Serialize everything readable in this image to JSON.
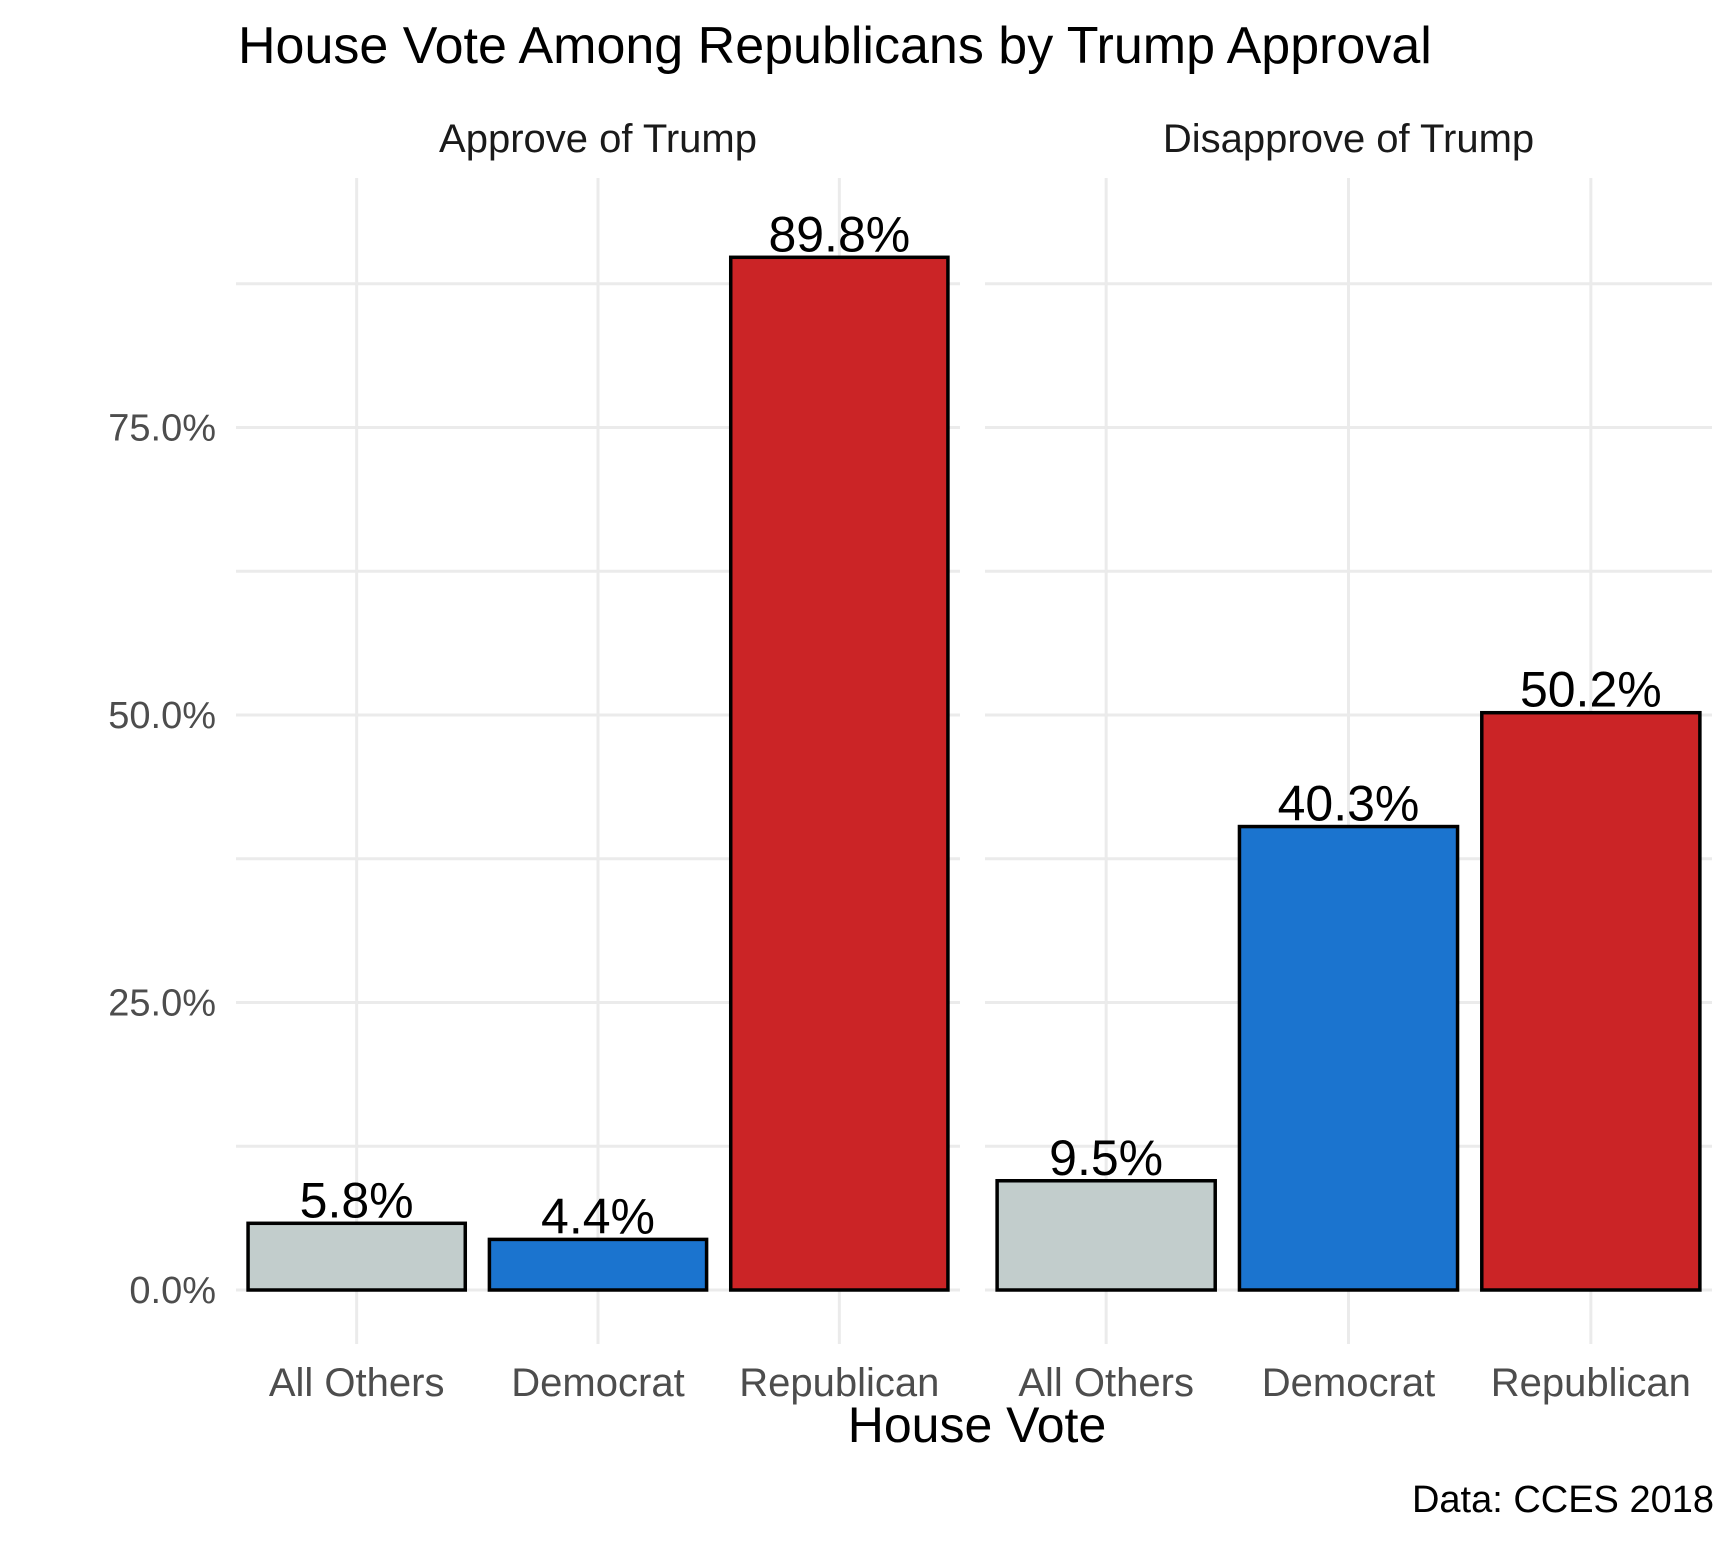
{
  "chart_data": {
    "type": "bar",
    "title": "House Vote Among Republicans by Trump Approval",
    "xlabel": "House Vote",
    "ylabel": "",
    "caption": "Data: CCES 2018",
    "categories": [
      "All Others",
      "Democrat",
      "Republican"
    ],
    "category_colors": {
      "All Others": "#c2cdcc",
      "Democrat": "#1b74cf",
      "Republican": "#cb2426"
    },
    "ylim": [
      0,
      100
    ],
    "y_ticks": [
      0,
      25,
      50,
      75
    ],
    "y_tick_labels": [
      "0.0%",
      "25.0%",
      "50.0%",
      "75.0%"
    ],
    "grid": true,
    "legend": "none",
    "panels": [
      {
        "name": "Approve of Trump",
        "values": [
          5.8,
          4.4,
          89.8
        ],
        "labels": [
          "5.8%",
          "4.4%",
          "89.8%"
        ]
      },
      {
        "name": "Disapprove of Trump",
        "values": [
          9.5,
          40.3,
          50.2
        ],
        "labels": [
          "9.5%",
          "40.3%",
          "50.2%"
        ]
      }
    ]
  }
}
